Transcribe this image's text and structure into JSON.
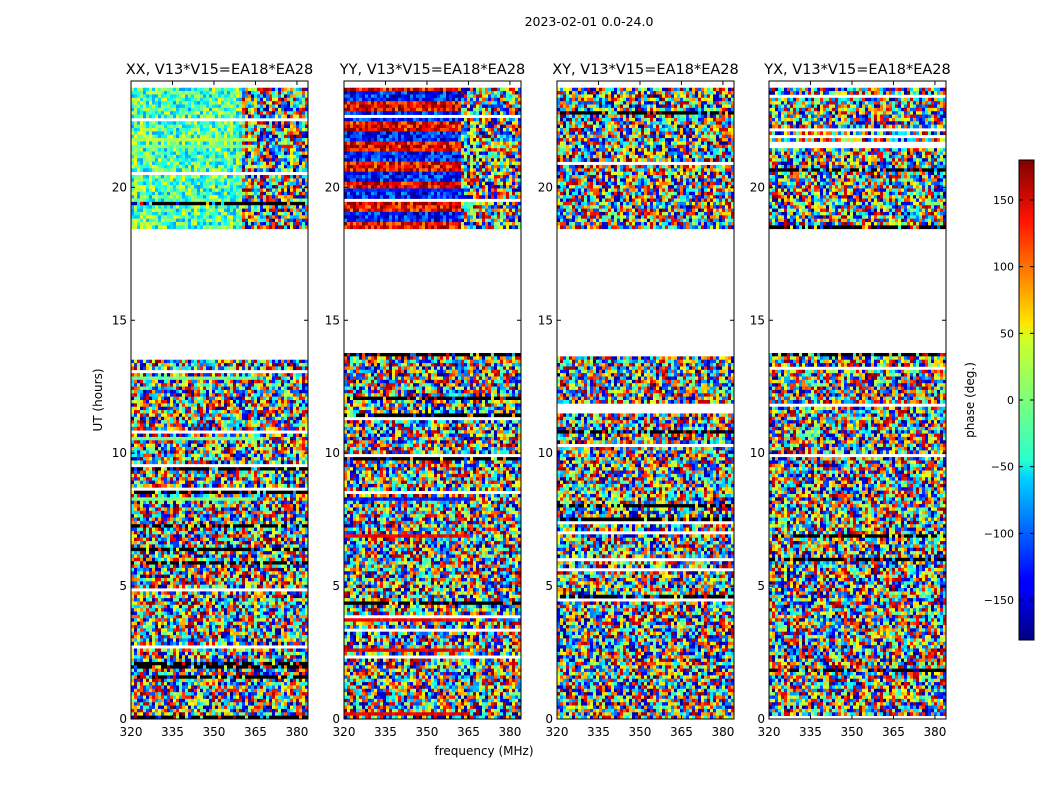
{
  "chart_data": {
    "type": "heatmap",
    "suptitle": "2023-02-01 0.0-24.0",
    "xlabel": "frequency (MHz)",
    "ylabel": "UT (hours)",
    "colorbar_label": "phase (deg.)",
    "colormap": "jet",
    "colorbar_range": [
      -180,
      180
    ],
    "colorbar_ticks": [
      -150,
      -100,
      -50,
      0,
      50,
      100,
      150
    ],
    "colorbar_tick_labels": [
      "−150",
      "−100",
      "−50",
      "0",
      "50",
      "100",
      "150"
    ],
    "xlim": [
      320,
      384
    ],
    "ylim": [
      0,
      24
    ],
    "x_ticks": [
      320,
      335,
      350,
      365,
      380
    ],
    "x_tick_labels": [
      "320",
      "335",
      "350",
      "365",
      "380"
    ],
    "y_ticks": [
      0,
      5,
      10,
      15,
      20
    ],
    "y_tick_labels": [
      "0",
      "5",
      "10",
      "15",
      "20"
    ],
    "data_gap_hours": [
      18.5,
      13.8
    ],
    "panels": [
      {
        "title": "XX, V13*V15=EA18*EA28",
        "pol": "XX"
      },
      {
        "title": "YY, V13*V15=EA18*EA28",
        "pol": "YY"
      },
      {
        "title": "XY, V13*V15=EA18*EA28",
        "pol": "XY"
      },
      {
        "title": "YX, V13*V15=EA18*EA28",
        "pol": "YX"
      }
    ]
  }
}
